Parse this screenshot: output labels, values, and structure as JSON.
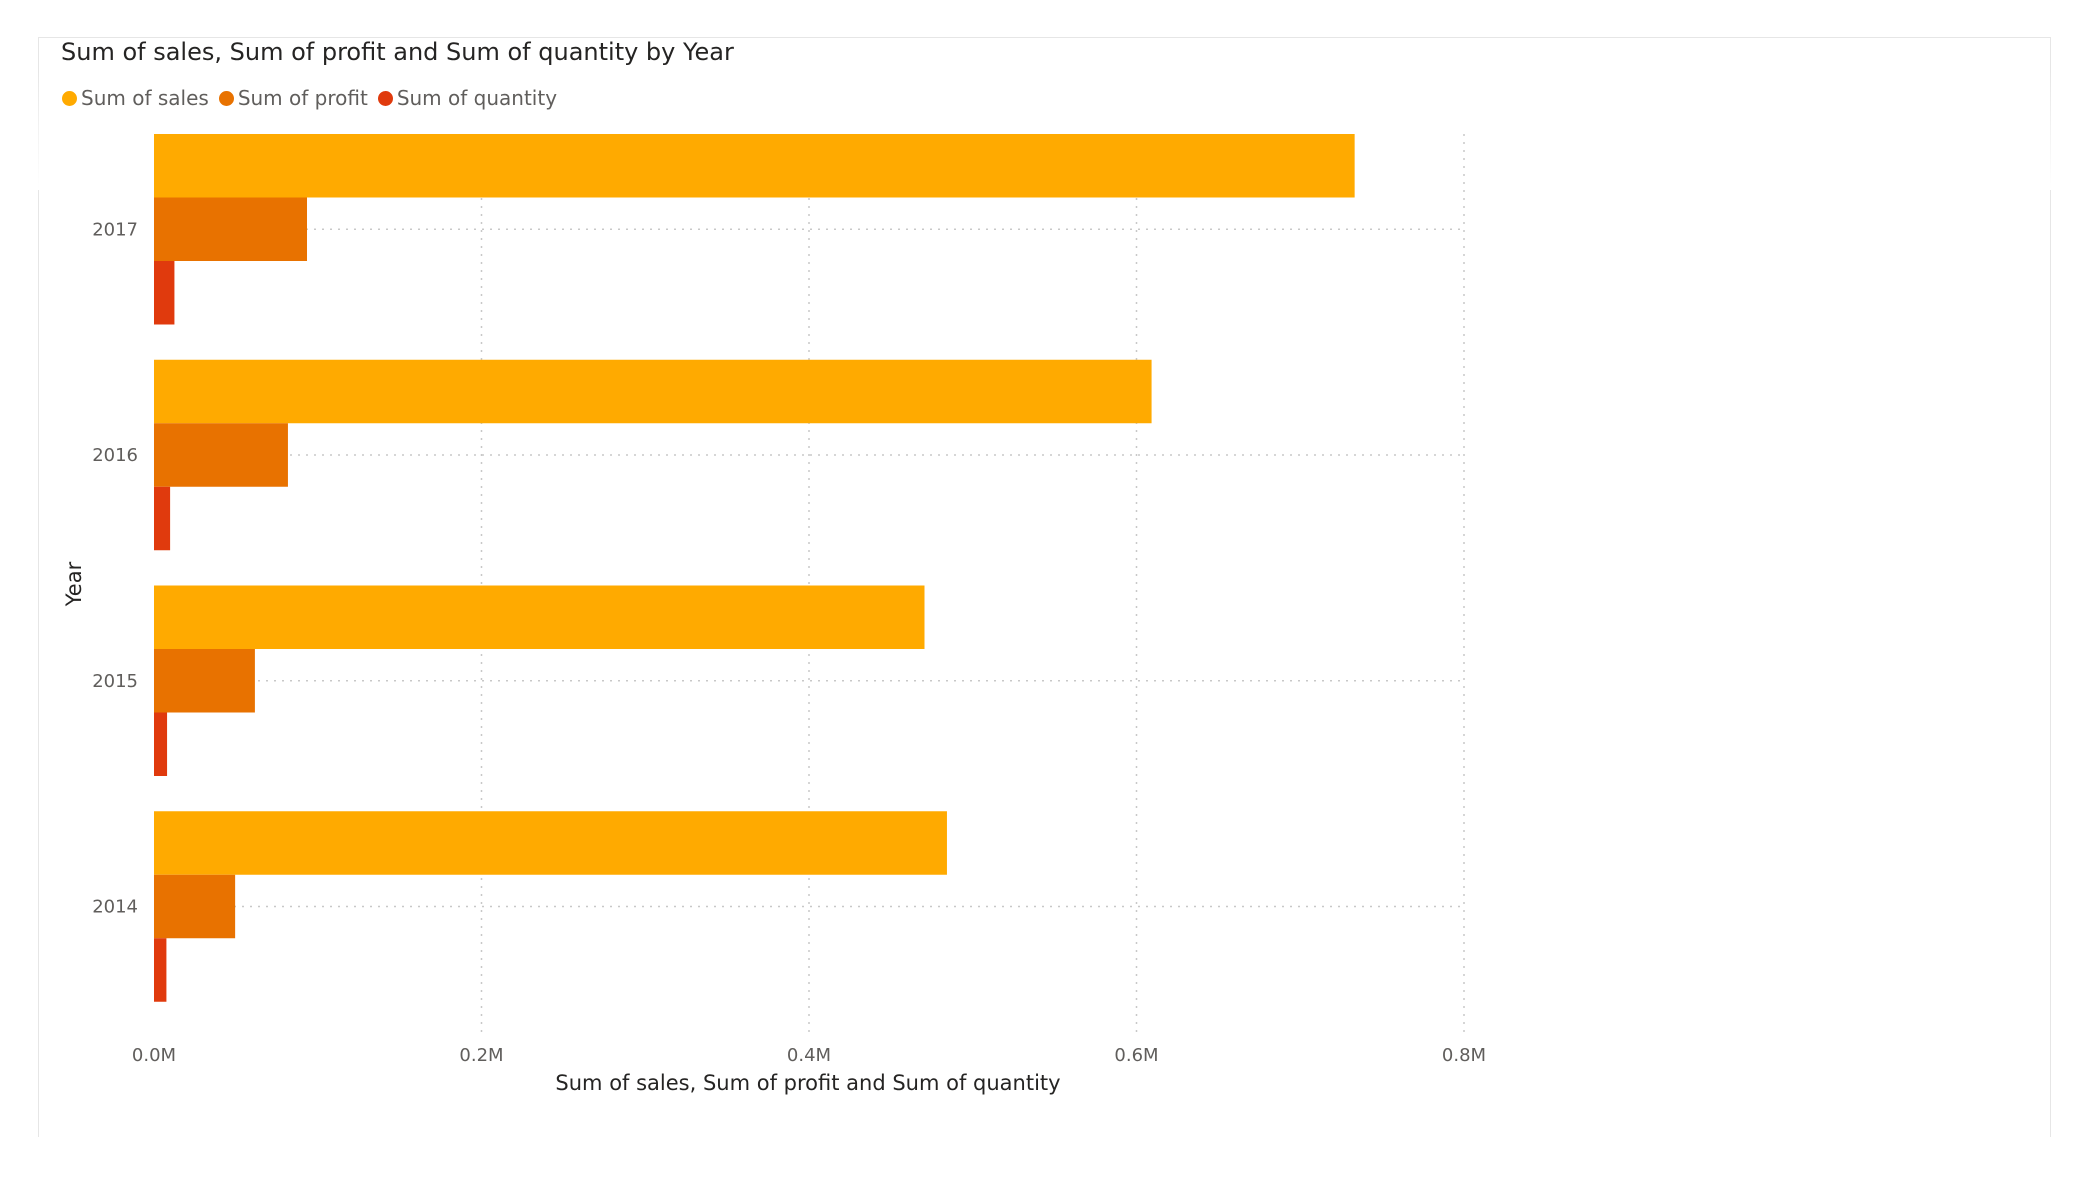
{
  "chart_data": {
    "type": "bar",
    "orientation": "horizontal",
    "title": "Sum of sales, Sum of profit and Sum of quantity by Year",
    "xlabel": "Sum of sales, Sum of profit and Sum of quantity",
    "ylabel": "Year",
    "categories": [
      "2017",
      "2016",
      "2015",
      "2014"
    ],
    "series": [
      {
        "name": "Sum of sales",
        "color": "#FFAA00",
        "values": [
          733215,
          609206,
          470533,
          484247
        ]
      },
      {
        "name": "Sum of profit",
        "color": "#E87200",
        "values": [
          93439,
          81795,
          61619,
          49544
        ]
      },
      {
        "name": "Sum of quantity",
        "color": "#E03A0D",
        "values": [
          12476,
          9837,
          7979,
          7581
        ]
      }
    ],
    "xlim": [
      0,
      800000
    ],
    "x_ticks": [
      {
        "value": 0,
        "label": "0.0M"
      },
      {
        "value": 200000,
        "label": "0.2M"
      },
      {
        "value": 400000,
        "label": "0.4M"
      },
      {
        "value": 600000,
        "label": "0.6M"
      },
      {
        "value": 800000,
        "label": "0.8M"
      }
    ],
    "grid": true,
    "legend_position": "top-left"
  }
}
